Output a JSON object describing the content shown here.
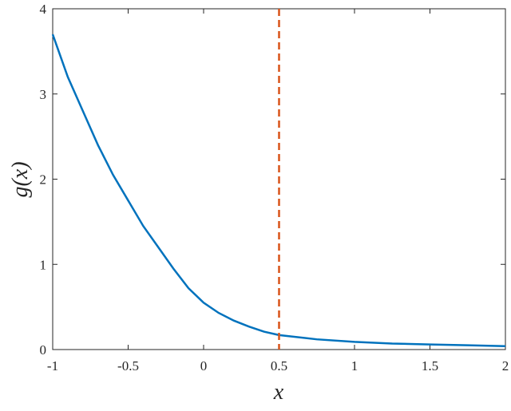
{
  "chart_data": {
    "type": "line",
    "x_label": "x",
    "y_label": "g(x)",
    "x": [
      -1,
      -0.9,
      -0.8,
      -0.7,
      -0.6,
      -0.5,
      -0.4,
      -0.3,
      -0.2,
      -0.1,
      0,
      0.1,
      0.2,
      0.3,
      0.4,
      0.5,
      0.75,
      1,
      1.25,
      1.5,
      1.75,
      2
    ],
    "series": [
      {
        "color": "#0072bd",
        "values": [
          3.7,
          3.2,
          2.8,
          2.4,
          2.05,
          1.75,
          1.45,
          1.2,
          0.95,
          0.72,
          0.55,
          0.43,
          0.34,
          0.27,
          0.21,
          0.17,
          0.12,
          0.09,
          0.07,
          0.06,
          0.05,
          0.04
        ]
      }
    ],
    "vline": {
      "x": 0.5,
      "color": "#d95319",
      "style": "dashed"
    },
    "xlim": [
      -1,
      2
    ],
    "xticks": [
      -1,
      -0.5,
      0,
      0.5,
      1,
      1.5,
      2
    ],
    "ylim": [
      0,
      4
    ],
    "yticks": [
      0,
      1,
      2,
      3,
      4
    ],
    "grid": false
  }
}
